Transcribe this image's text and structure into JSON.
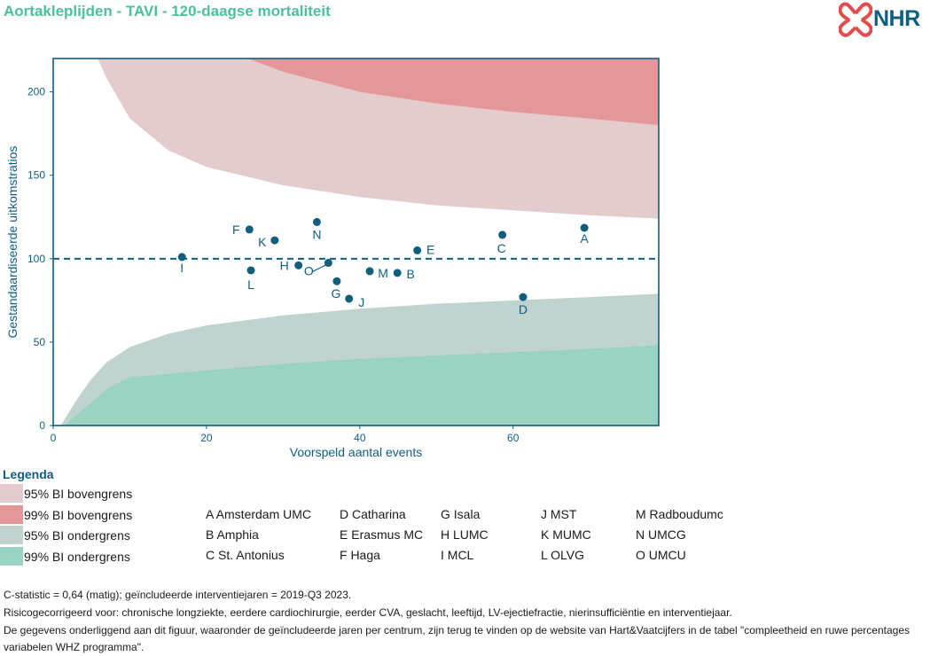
{
  "header": {
    "title": "Aortakleplijden - TAVI - 120-daagse mortaliteit",
    "logo_text": "NHR"
  },
  "chart_data": {
    "type": "scatter",
    "xlabel": "Voorspeld aantal events",
    "ylabel": "Gestandaardiseerde uitkomstratios",
    "xlim": [
      0,
      79
    ],
    "ylim": [
      0,
      220
    ],
    "x_ticks": [
      "0",
      "20",
      "40",
      "60"
    ],
    "y_ticks": [
      "0",
      "50",
      "100",
      "150",
      "200"
    ],
    "reference_line": 100,
    "bands": {
      "upper99": [
        [
          25.4,
          220
        ],
        [
          30,
          212
        ],
        [
          40,
          200
        ],
        [
          50,
          193
        ],
        [
          60,
          188
        ],
        [
          70,
          184
        ],
        [
          79,
          180
        ]
      ],
      "upper95": [
        [
          5.8,
          220
        ],
        [
          7,
          208
        ],
        [
          10,
          184
        ],
        [
          15,
          165
        ],
        [
          20,
          155
        ],
        [
          30,
          144
        ],
        [
          40,
          137
        ],
        [
          50,
          132
        ],
        [
          60,
          129
        ],
        [
          70,
          126
        ],
        [
          79,
          124
        ]
      ],
      "lower95": [
        [
          1,
          0
        ],
        [
          3,
          15
        ],
        [
          5,
          28
        ],
        [
          7,
          38
        ],
        [
          10,
          47
        ],
        [
          15,
          55
        ],
        [
          20,
          60
        ],
        [
          30,
          66
        ],
        [
          40,
          70
        ],
        [
          50,
          73
        ],
        [
          60,
          75
        ],
        [
          70,
          77
        ],
        [
          79,
          79
        ]
      ],
      "lower99": [
        [
          1.5,
          0
        ],
        [
          4,
          10
        ],
        [
          7,
          22
        ],
        [
          10,
          29
        ],
        [
          20,
          33
        ],
        [
          30,
          37
        ],
        [
          40,
          40
        ],
        [
          50,
          42
        ],
        [
          60,
          44
        ],
        [
          70,
          46
        ],
        [
          79,
          48
        ]
      ]
    },
    "points": [
      {
        "label": "A",
        "x": 69.3,
        "y": 118.5
      },
      {
        "label": "B",
        "x": 44.9,
        "y": 91.5
      },
      {
        "label": "C",
        "x": 58.6,
        "y": 114.3
      },
      {
        "label": "D",
        "x": 61.3,
        "y": 77.0
      },
      {
        "label": "E",
        "x": 47.5,
        "y": 105.0
      },
      {
        "label": "F",
        "x": 25.6,
        "y": 117.5
      },
      {
        "label": "G",
        "x": 37.0,
        "y": 86.5
      },
      {
        "label": "H",
        "x": 32.0,
        "y": 96.0
      },
      {
        "label": "I",
        "x": 16.8,
        "y": 101.0
      },
      {
        "label": "J",
        "x": 38.6,
        "y": 76.0
      },
      {
        "label": "K",
        "x": 28.9,
        "y": 111.0
      },
      {
        "label": "L",
        "x": 25.8,
        "y": 93.0
      },
      {
        "label": "M",
        "x": 41.3,
        "y": 92.5
      },
      {
        "label": "N",
        "x": 34.4,
        "y": 122.0
      },
      {
        "label": "O",
        "x": 35.9,
        "y": 97.5
      }
    ]
  },
  "legend": {
    "title": "Legenda",
    "items": [
      {
        "label": "95% BI bovengrens",
        "color": "#e4cbcd"
      },
      {
        "label": "99% BI bovengrens",
        "color": "#e39798"
      },
      {
        "label": "95% BI ondergrens",
        "color": "#c0d3ce"
      },
      {
        "label": "99% BI ondergrens",
        "color": "#9ad3c3"
      }
    ],
    "hospitals": [
      [
        "A Amsterdam UMC",
        "B Amphia",
        "C St. Antonius"
      ],
      [
        "D Catharina",
        "E Erasmus MC",
        "F Haga"
      ],
      [
        "G Isala",
        "H LUMC",
        "I MCL"
      ],
      [
        "J MST",
        "K MUMC",
        "L OLVG"
      ],
      [
        "M Radboudumc",
        "N UMCG",
        "O UMCU"
      ]
    ]
  },
  "footer": {
    "line1": "C-statistic =  0,64 (matig); geïncludeerde interventiejaren = 2019-Q3 2023.",
    "line2": "Risicogecorrigeerd voor: chronische longziekte, eerdere cardiochirurgie, eerder CVA, geslacht, leeftijd, LV-ejectiefractie, nierinsufficiëntie en interventiejaar.",
    "line3": "De gegevens onderliggend aan dit figuur, waaronder de geïncludeerde jaren per centrum, zijn terug te vinden op de website van Hart&Vaatcijfers in de tabel \"compleetheid en ruwe percentages variabelen WHZ programma\"."
  },
  "colors": {
    "title": "#4cbfa0",
    "axis": "#0e5e80",
    "point": "#0e5e80",
    "logo": "#e64b4b"
  }
}
